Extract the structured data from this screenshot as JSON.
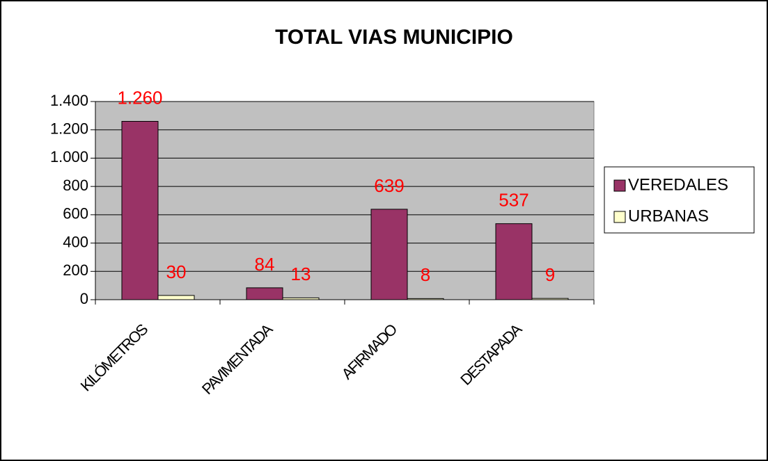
{
  "chart_data": {
    "type": "bar",
    "title": "TOTAL VIAS MUNICIPIO",
    "categories": [
      "KILÓMETROS",
      "PAVIMENTADA",
      "AFIRMADO",
      "DESTAPADA"
    ],
    "series": [
      {
        "name": "VEREDALES",
        "color": "#993366",
        "values": [
          1260,
          84,
          639,
          537
        ],
        "value_labels": [
          "1.260",
          "84",
          "639",
          "537"
        ]
      },
      {
        "name": "URBANAS",
        "color": "#ffffcc",
        "values": [
          30,
          13,
          8,
          9
        ]
      }
    ],
    "ylim": [
      0,
      1400
    ],
    "yticks": [
      0,
      200,
      400,
      600,
      800,
      {
        "value": 1000,
        "label": "1.000"
      },
      {
        "value": 1200,
        "label": "1.200"
      },
      {
        "value": 1400,
        "label": "1.400"
      }
    ],
    "grid": true,
    "legend": "right",
    "value_label_color": "#ff0000",
    "plot_background": "#c0c0c0"
  }
}
